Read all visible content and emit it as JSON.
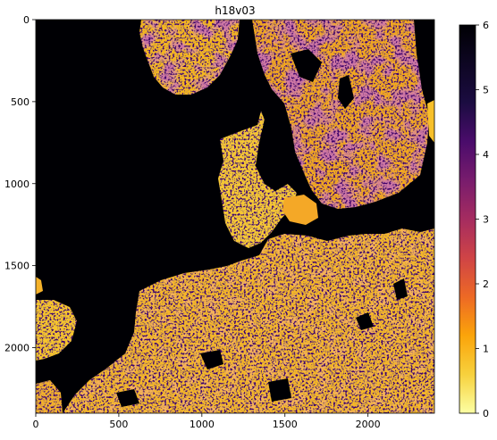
{
  "chart_data": {
    "type": "heatmap",
    "title": "h18v03",
    "xlabel": "",
    "ylabel": "",
    "xlim": [
      0,
      2400
    ],
    "ylim": [
      2400,
      0
    ],
    "x_ticks": [
      0,
      500,
      1000,
      1500,
      2000
    ],
    "y_ticks": [
      0,
      500,
      1000,
      1500,
      2000
    ],
    "colorbar": {
      "colormap": "inferno_r",
      "range": [
        0,
        6
      ],
      "ticks": [
        0,
        1,
        2,
        3,
        4,
        5,
        6
      ],
      "placement": "right"
    },
    "background_value": 6,
    "grid": false
  }
}
